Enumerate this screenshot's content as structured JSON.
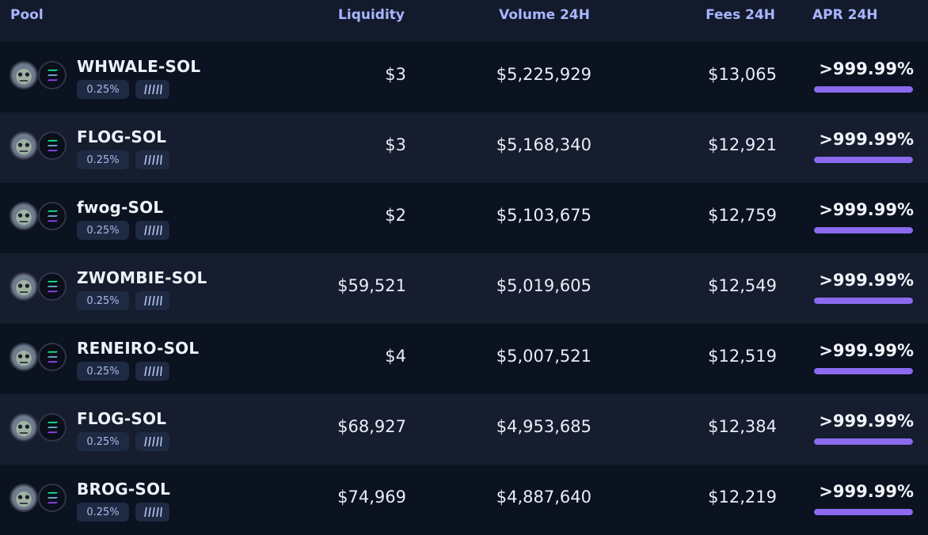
{
  "header": {
    "pool": "Pool",
    "liquidity": "Liquidity",
    "volume": "Volume 24H",
    "fees": "Fees 24H",
    "apr": "APR 24H"
  },
  "colors": {
    "accent_header": "#a8b6ff",
    "apr_bar": "#8b6af0"
  },
  "rows": [
    {
      "name": "WHWALE-SOL",
      "fee_tier": "0.25%",
      "liquidity": "$3",
      "volume": "$5,225,929",
      "fees": "$13,065",
      "apr": ">999.99%",
      "apr_fill": 1.0,
      "token_icon": "whale-token-icon"
    },
    {
      "name": "FLOG-SOL",
      "fee_tier": "0.25%",
      "liquidity": "$3",
      "volume": "$5,168,340",
      "fees": "$12,921",
      "apr": ">999.99%",
      "apr_fill": 1.0,
      "token_icon": "frog-token-icon"
    },
    {
      "name": "fwog-SOL",
      "fee_tier": "0.25%",
      "liquidity": "$2",
      "volume": "$5,103,675",
      "fees": "$12,759",
      "apr": ">999.99%",
      "apr_fill": 1.0,
      "token_icon": "fwog-token-icon"
    },
    {
      "name": "ZWOMBIE-SOL",
      "fee_tier": "0.25%",
      "liquidity": "$59,521",
      "volume": "$5,019,605",
      "fees": "$12,549",
      "apr": ">999.99%",
      "apr_fill": 1.0,
      "token_icon": "zombie-token-icon"
    },
    {
      "name": "RENEIRO-SOL",
      "fee_tier": "0.25%",
      "liquidity": "$4",
      "volume": "$5,007,521",
      "fees": "$12,519",
      "apr": ">999.99%",
      "apr_fill": 1.0,
      "token_icon": "reneiro-token-icon"
    },
    {
      "name": "FLOG-SOL",
      "fee_tier": "0.25%",
      "liquidity": "$68,927",
      "volume": "$4,953,685",
      "fees": "$12,384",
      "apr": ">999.99%",
      "apr_fill": 1.0,
      "token_icon": "frog-token-icon"
    },
    {
      "name": "BROG-SOL",
      "fee_tier": "0.25%",
      "liquidity": "$74,969",
      "volume": "$4,887,640",
      "fees": "$12,219",
      "apr": ">999.99%",
      "apr_fill": 1.0,
      "token_icon": "brog-token-icon"
    }
  ]
}
